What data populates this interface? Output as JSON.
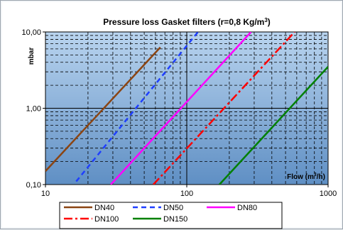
{
  "chart_data": {
    "type": "line",
    "title": "Pressure loss Gasket filters (r=0,8 Kg/m",
    "title_superscript": "3",
    "title_suffix": ")",
    "ylabel": "mbar",
    "xlabel": "Flow (m",
    "xlabel_superscript": "3",
    "xlabel_suffix": "/h)",
    "x_scale": "log",
    "y_scale": "log",
    "xlim": [
      10,
      1000
    ],
    "ylim": [
      0.1,
      10
    ],
    "x_ticks": [
      "10",
      "100",
      "1000"
    ],
    "y_ticks": [
      "0,10",
      "1,00",
      "10,00"
    ],
    "grid": true,
    "legend_position": "bottom",
    "series": [
      {
        "name": "DN40",
        "color": "#8B4513",
        "dash": "solid",
        "x": [
          10,
          65
        ],
        "y": [
          0.15,
          6.3
        ]
      },
      {
        "name": "DN50",
        "color": "#1f3fff",
        "dash": "dash",
        "x": [
          16.5,
          120
        ],
        "y": [
          0.11,
          10
        ]
      },
      {
        "name": "DN80",
        "color": "#ff00ff",
        "dash": "solid",
        "x": [
          29,
          285
        ],
        "y": [
          0.1,
          10
        ]
      },
      {
        "name": "DN100",
        "color": "#ff0000",
        "dash": "dashdot",
        "x": [
          58,
          580
        ],
        "y": [
          0.1,
          10
        ]
      },
      {
        "name": "DN150",
        "color": "#008000",
        "dash": "solid",
        "x": [
          170,
          1000
        ],
        "y": [
          0.1,
          3.5
        ]
      }
    ]
  }
}
